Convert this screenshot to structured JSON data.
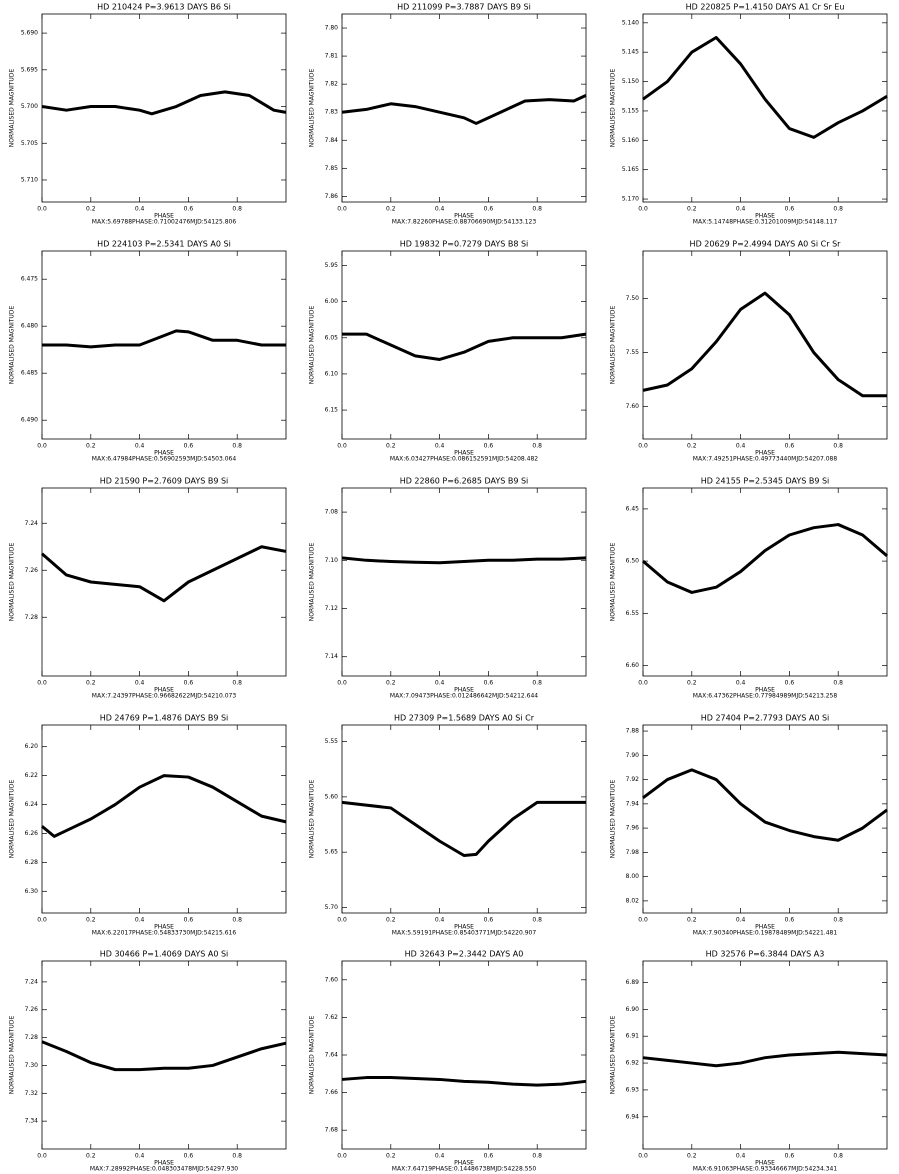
{
  "chart_data": [
    {
      "type": "line",
      "title": "HD 210424   P=3.9613 DAYS   B6 Si",
      "x_label": "PHASE",
      "y_label": "NORMALISED MAGNITUDE",
      "footer": "MAX:5.69788PHASE:0.71002476MJD:54125.806",
      "invert_y": true,
      "color": "#000000",
      "x": [
        0,
        0.1,
        0.2,
        0.3,
        0.4,
        0.45,
        0.55,
        0.65,
        0.75,
        0.85,
        0.95,
        1.0
      ],
      "values": [
        5.7,
        5.7005,
        5.7,
        5.7,
        5.7005,
        5.701,
        5.7,
        5.6985,
        5.698,
        5.6985,
        5.7005,
        5.7008
      ],
      "xlim": [
        0,
        1
      ],
      "xticks": [
        {
          "value": 0,
          "label": "0.0"
        },
        0.2,
        0.4,
        0.6,
        0.8
      ],
      "ylim": [
        5.6874,
        5.713
      ],
      "yticks": [
        {
          "value": 5.69,
          "label": "5.690"
        },
        5.695,
        {
          "value": 5.7,
          "label": "5.700"
        },
        5.705,
        {
          "value": 5.71,
          "label": "5.710"
        }
      ]
    },
    {
      "type": "line",
      "title": "HD 211099   P=3.7887 DAYS   B9 Si",
      "x_label": "PHASE",
      "y_label": "NORMALISED MAGNITUDE",
      "footer": "MAX:7.82260PHASE:0.88706690MJD:54133.123",
      "invert_y": true,
      "color": "#000000",
      "x": [
        0,
        0.1,
        0.2,
        0.3,
        0.4,
        0.5,
        0.55,
        0.65,
        0.75,
        0.85,
        0.95,
        1.0
      ],
      "values": [
        7.83,
        7.829,
        7.827,
        7.828,
        7.83,
        7.832,
        7.834,
        7.83,
        7.826,
        7.8255,
        7.826,
        7.824
      ],
      "xlim": [
        0,
        1
      ],
      "xticks": [
        {
          "value": 0,
          "label": "0.0"
        },
        0.2,
        0.4,
        0.6,
        0.8
      ],
      "ylim": [
        7.795,
        7.862
      ],
      "yticks": [
        {
          "value": 7.8,
          "label": "7.80"
        },
        7.81,
        7.82,
        7.83,
        7.84,
        7.85,
        7.86
      ]
    },
    {
      "type": "line",
      "title": "HD 220825   P=1.4150 DAYS   A1 Cr Sr Eu",
      "x_label": "PHASE",
      "y_label": "NORMALISED MAGNITUDE",
      "footer": "MAX:5.14748PHASE:0.31201009MJD:54148.117",
      "invert_y": true,
      "color": "#000000",
      "x": [
        0,
        0.1,
        0.2,
        0.3,
        0.4,
        0.5,
        0.6,
        0.7,
        0.8,
        0.9,
        1.0
      ],
      "values": [
        5.153,
        5.15,
        5.145,
        5.1425,
        5.147,
        5.153,
        5.158,
        5.1595,
        5.157,
        5.155,
        5.1525
      ],
      "xlim": [
        0,
        1
      ],
      "xticks": [
        {
          "value": 0,
          "label": "0.0"
        },
        0.2,
        0.4,
        0.6,
        0.8
      ],
      "ylim": [
        5.1385,
        5.1705
      ],
      "yticks": [
        {
          "value": 5.14,
          "label": "5.140"
        },
        5.145,
        {
          "value": 5.15,
          "label": "5.150"
        },
        5.155,
        {
          "value": 5.16,
          "label": "5.160"
        },
        5.165,
        {
          "value": 5.17,
          "label": "5.170"
        }
      ]
    },
    {
      "type": "line",
      "title": "HD 224103   P=2.5341 DAYS   A0 Si",
      "x_label": "PHASE",
      "y_label": "NORMALISED MAGNITUDE",
      "footer": "MAX:6.47984PHASE:0.56902593MJD:54503.064",
      "invert_y": true,
      "color": "#000000",
      "x": [
        0,
        0.1,
        0.2,
        0.3,
        0.4,
        0.5,
        0.55,
        0.6,
        0.7,
        0.8,
        0.9,
        1.0
      ],
      "values": [
        6.482,
        6.482,
        6.4822,
        6.482,
        6.482,
        6.481,
        6.4805,
        6.4806,
        6.4815,
        6.4815,
        6.482,
        6.482
      ],
      "xlim": [
        0,
        1
      ],
      "xticks": [
        {
          "value": 0,
          "label": "0.0"
        },
        0.2,
        0.4,
        0.6,
        0.8
      ],
      "ylim": [
        6.472,
        6.492
      ],
      "yticks": [
        6.475,
        {
          "value": 6.48,
          "label": "6.480"
        },
        6.485,
        {
          "value": 6.49,
          "label": "6.490"
        }
      ]
    },
    {
      "type": "line",
      "title": "HD 19832   P=0.7279 DAYS   B8 Si",
      "x_label": "PHASE",
      "y_label": "NORMALISED MAGNITUDE",
      "footer": "MAX:6.03427PHASE:0.086152591MJD:54208.482",
      "invert_y": true,
      "color": "#000000",
      "x": [
        0,
        0.1,
        0.2,
        0.3,
        0.4,
        0.5,
        0.6,
        0.7,
        0.8,
        0.9,
        1.0
      ],
      "values": [
        6.045,
        6.045,
        6.06,
        6.075,
        6.08,
        6.07,
        6.055,
        6.05,
        6.05,
        6.05,
        6.045
      ],
      "xlim": [
        0,
        1
      ],
      "xticks": [
        {
          "value": 0,
          "label": "0.0"
        },
        0.2,
        0.4,
        0.6,
        0.8
      ],
      "ylim": [
        5.93,
        6.19
      ],
      "yticks": [
        5.95,
        {
          "value": 6,
          "label": "6.00"
        },
        6.05,
        {
          "value": 6.1,
          "label": "6.10"
        },
        6.15
      ]
    },
    {
      "type": "line",
      "title": "HD 20629   P=2.4994 DAYS   A0 Si Cr Sr",
      "x_label": "PHASE",
      "y_label": "NORMALISED MAGNITUDE",
      "footer": "MAX:7.49251PHASE:0.49773440MJD:54207.088",
      "invert_y": true,
      "color": "#000000",
      "x": [
        0,
        0.1,
        0.2,
        0.3,
        0.4,
        0.5,
        0.6,
        0.7,
        0.8,
        0.9,
        1.0
      ],
      "values": [
        7.585,
        7.58,
        7.565,
        7.54,
        7.51,
        7.495,
        7.515,
        7.55,
        7.575,
        7.59,
        7.59
      ],
      "xlim": [
        0,
        1
      ],
      "xticks": [
        {
          "value": 0,
          "label": "0.0"
        },
        0.2,
        0.4,
        0.6,
        0.8
      ],
      "ylim": [
        7.456,
        7.63
      ],
      "yticks": [
        {
          "value": 7.5,
          "label": "7.50"
        },
        7.55,
        {
          "value": 7.6,
          "label": "7.60"
        }
      ]
    },
    {
      "type": "line",
      "title": "HD 21590   P=2.7609 DAYS   B9 Si",
      "x_label": "PHASE",
      "y_label": "NORMALISED MAGNITUDE",
      "footer": "MAX:7.24397PHASE:0.96682622MJD:54210.073",
      "invert_y": true,
      "color": "#000000",
      "x": [
        0,
        0.1,
        0.2,
        0.3,
        0.4,
        0.5,
        0.6,
        0.7,
        0.8,
        0.9,
        1.0
      ],
      "values": [
        7.253,
        7.262,
        7.265,
        7.266,
        7.267,
        7.273,
        7.265,
        7.26,
        7.255,
        7.25,
        7.252
      ],
      "xlim": [
        0,
        1
      ],
      "xticks": [
        {
          "value": 0,
          "label": "0.0"
        },
        0.2,
        0.4,
        0.6,
        0.8
      ],
      "ylim": [
        7.225,
        7.305
      ],
      "yticks": [
        7.24,
        7.26,
        7.28
      ]
    },
    {
      "type": "line",
      "title": "HD 22860   P=6.2685 DAYS   B9 Si",
      "x_label": "PHASE",
      "y_label": "NORMALISED MAGNITUDE",
      "footer": "MAX:7.09473PHASE:0.012486642MJD:54212.644",
      "invert_y": true,
      "color": "#000000",
      "x": [
        0,
        0.1,
        0.2,
        0.3,
        0.4,
        0.5,
        0.6,
        0.7,
        0.8,
        0.9,
        1.0
      ],
      "values": [
        7.099,
        7.1,
        7.1005,
        7.1008,
        7.101,
        7.1005,
        7.1,
        7.1,
        7.0995,
        7.0995,
        7.099
      ],
      "xlim": [
        0,
        1
      ],
      "xticks": [
        {
          "value": 0,
          "label": "0.0"
        },
        0.2,
        0.4,
        0.6,
        0.8
      ],
      "ylim": [
        7.07,
        7.148
      ],
      "yticks": [
        7.08,
        {
          "value": 7.1,
          "label": "7.10"
        },
        7.12,
        7.14
      ]
    },
    {
      "type": "line",
      "title": "HD 24155   P=2.5345 DAYS   B9 Si",
      "x_label": "PHASE",
      "y_label": "NORMALISED MAGNITUDE",
      "footer": "MAX:6.47362PHASE:0.77984989MJD:54213.258",
      "invert_y": true,
      "color": "#000000",
      "x": [
        0,
        0.1,
        0.2,
        0.3,
        0.4,
        0.5,
        0.6,
        0.7,
        0.8,
        0.9,
        1.0
      ],
      "values": [
        6.5,
        6.52,
        6.53,
        6.525,
        6.51,
        6.49,
        6.475,
        6.468,
        6.465,
        6.475,
        6.495
      ],
      "xlim": [
        0,
        1
      ],
      "xticks": [
        {
          "value": 0,
          "label": "0.0"
        },
        0.2,
        0.4,
        0.6,
        0.8
      ],
      "ylim": [
        6.43,
        6.61
      ],
      "yticks": [
        6.45,
        {
          "value": 6.5,
          "label": "6.50"
        },
        6.55,
        {
          "value": 6.6,
          "label": "6.60"
        }
      ]
    },
    {
      "type": "line",
      "title": "HD 24769   P=1.4876 DAYS   B9 Si",
      "x_label": "PHASE",
      "y_label": "NORMALISED MAGNITUDE",
      "footer": "MAX:6.22017PHASE:0.54833730MJD:54215.616",
      "invert_y": true,
      "color": "#000000",
      "x": [
        0,
        0.05,
        0.1,
        0.2,
        0.3,
        0.4,
        0.5,
        0.6,
        0.7,
        0.8,
        0.9,
        1.0
      ],
      "values": [
        6.255,
        6.262,
        6.258,
        6.25,
        6.24,
        6.228,
        6.22,
        6.221,
        6.228,
        6.238,
        6.248,
        6.252
      ],
      "xlim": [
        0,
        1
      ],
      "xticks": [
        {
          "value": 0,
          "label": "0.0"
        },
        0.2,
        0.4,
        0.6,
        0.8
      ],
      "ylim": [
        6.185,
        6.315
      ],
      "yticks": [
        {
          "value": 6.2,
          "label": "6.20"
        },
        6.22,
        6.24,
        6.26,
        6.28,
        {
          "value": 6.3,
          "label": "6.30"
        }
      ]
    },
    {
      "type": "line",
      "title": "HD 27309   P=1.5689 DAYS   A0 Si Cr",
      "x_label": "PHASE",
      "y_label": "NORMALISED MAGNITUDE",
      "footer": "MAX:5.59191PHASE:0.85403771MJD:54220.907",
      "invert_y": true,
      "color": "#000000",
      "x": [
        0,
        0.2,
        0.3,
        0.4,
        0.5,
        0.55,
        0.6,
        0.7,
        0.8,
        0.9,
        1.0
      ],
      "values": [
        5.605,
        5.61,
        5.625,
        5.64,
        5.653,
        5.652,
        5.64,
        5.62,
        5.605,
        5.605,
        5.605
      ],
      "xlim": [
        0,
        1
      ],
      "xticks": [
        {
          "value": 0,
          "label": "0.0"
        },
        0.2,
        0.4,
        0.6,
        0.8
      ],
      "ylim": [
        5.535,
        5.705
      ],
      "yticks": [
        5.55,
        {
          "value": 5.6,
          "label": "5.60"
        },
        5.65,
        {
          "value": 5.7,
          "label": "5.70"
        }
      ]
    },
    {
      "type": "line",
      "title": "HD 27404   P=2.7793 DAYS   A0 Si",
      "x_label": "PHASE",
      "y_label": "NORMALISED MAGNITUDE",
      "footer": "MAX:7.90340PHASE:0.19878489MJD:54221.481",
      "invert_y": true,
      "color": "#000000",
      "x": [
        0,
        0.1,
        0.2,
        0.3,
        0.4,
        0.5,
        0.6,
        0.7,
        0.8,
        0.9,
        1.0
      ],
      "values": [
        7.935,
        7.92,
        7.912,
        7.92,
        7.94,
        7.955,
        7.962,
        7.967,
        7.97,
        7.96,
        7.945
      ],
      "xlim": [
        0,
        1
      ],
      "xticks": [
        {
          "value": 0,
          "label": "0.0"
        },
        0.2,
        0.4,
        0.6,
        0.8
      ],
      "ylim": [
        7.875,
        8.03
      ],
      "yticks": [
        7.88,
        {
          "value": 7.9,
          "label": "7.90"
        },
        7.92,
        7.94,
        7.96,
        7.98,
        {
          "value": 8,
          "label": "8.00"
        },
        8.02
      ]
    },
    {
      "type": "line",
      "title": "HD 30466   P=1.4069 DAYS   A0 Si",
      "x_label": "PHASE",
      "y_label": "NORMALISED MAGNITUDE",
      "footer": "MAX:7.28992PHASE:0.048303478MJD:54297.930",
      "invert_y": true,
      "color": "#000000",
      "x": [
        0,
        0.1,
        0.2,
        0.3,
        0.4,
        0.5,
        0.6,
        0.7,
        0.8,
        0.9,
        1.0
      ],
      "values": [
        7.283,
        7.29,
        7.298,
        7.303,
        7.303,
        7.302,
        7.302,
        7.3,
        7.294,
        7.288,
        7.284
      ],
      "xlim": [
        0,
        1
      ],
      "xticks": [
        {
          "value": 0,
          "label": "0.0"
        },
        0.2,
        0.4,
        0.6,
        0.8
      ],
      "ylim": [
        7.225,
        7.36
      ],
      "yticks": [
        7.24,
        7.26,
        7.28,
        {
          "value": 7.3,
          "label": "7.30"
        },
        7.32,
        7.34
      ]
    },
    {
      "type": "line",
      "title": "HD 32643   P=2.3442 DAYS   A0",
      "x_label": "PHASE",
      "y_label": "NORMALISED MAGNITUDE",
      "footer": "MAX:7.64719PHASE:0.14486738MJD:54228.550",
      "invert_y": true,
      "color": "#000000",
      "x": [
        0,
        0.1,
        0.2,
        0.3,
        0.4,
        0.5,
        0.6,
        0.7,
        0.8,
        0.9,
        1.0
      ],
      "values": [
        7.653,
        7.652,
        7.652,
        7.6525,
        7.653,
        7.654,
        7.6545,
        7.6555,
        7.656,
        7.6555,
        7.654
      ],
      "xlim": [
        0,
        1
      ],
      "xticks": [
        {
          "value": 0,
          "label": "0.0"
        },
        0.2,
        0.4,
        0.6,
        0.8
      ],
      "ylim": [
        7.59,
        7.69
      ],
      "yticks": [
        {
          "value": 7.6,
          "label": "7.60"
        },
        7.62,
        7.64,
        7.66,
        7.68
      ]
    },
    {
      "type": "line",
      "title": "HD 32576   P=6.3844 DAYS   A3",
      "x_label": "PHASE",
      "y_label": "NORMALISED MAGNITUDE",
      "footer": "MAX:6.91063PHASE:0.93346667MJD:54234.341",
      "invert_y": true,
      "color": "#000000",
      "x": [
        0,
        0.1,
        0.2,
        0.3,
        0.4,
        0.5,
        0.6,
        0.7,
        0.8,
        0.9,
        1.0
      ],
      "values": [
        6.918,
        6.919,
        6.92,
        6.921,
        6.92,
        6.918,
        6.917,
        6.9165,
        6.916,
        6.9165,
        6.917
      ],
      "xlim": [
        0,
        1
      ],
      "xticks": [
        {
          "value": 0,
          "label": "0.0"
        },
        0.2,
        0.4,
        0.6,
        0.8
      ],
      "ylim": [
        6.882,
        6.952
      ],
      "yticks": [
        6.89,
        {
          "value": 6.9,
          "label": "6.90"
        },
        6.91,
        6.92,
        6.93,
        6.94
      ]
    }
  ]
}
